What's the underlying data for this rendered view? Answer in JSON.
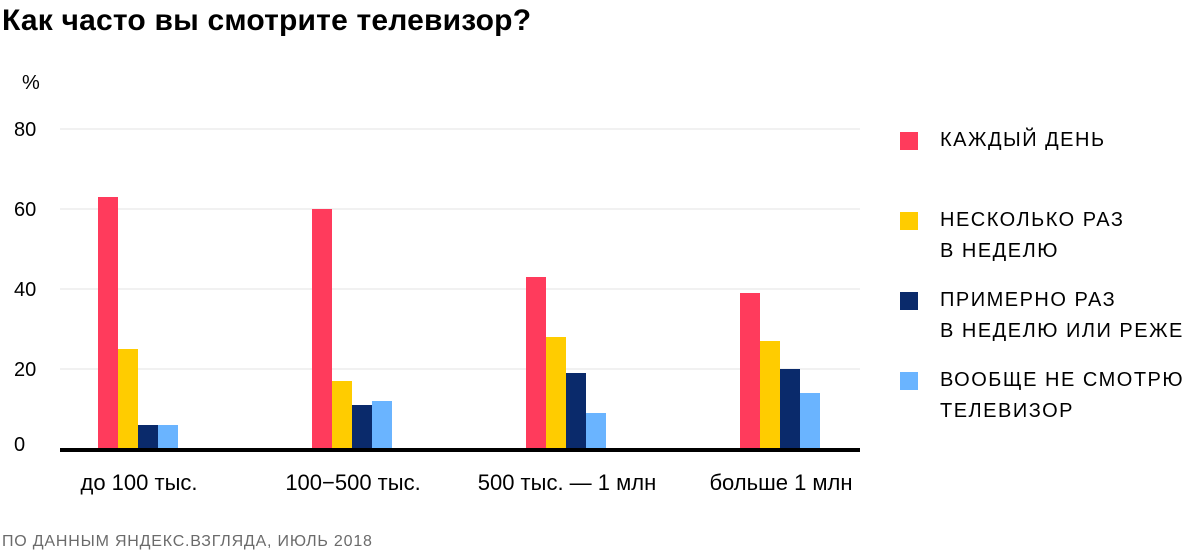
{
  "title": "Как часто вы смотрите телевизор?",
  "source": "ПО ДАННЫМ ЯНДЕКС.ВЗГЛЯДА, ИЮЛЬ 2018",
  "chart_data": {
    "type": "bar",
    "title": "Как часто вы смотрите телевизор?",
    "ylabel": "%",
    "xlabel": "",
    "ylim": [
      0,
      80
    ],
    "yticks": [
      0,
      20,
      40,
      60,
      80
    ],
    "grid": true,
    "legend_position": "right",
    "categories": [
      "до 100 тыс.",
      "100−500 тыс.",
      "500 тыс. — 1 млн",
      "больше 1 млн"
    ],
    "series": [
      {
        "name": "КАЖДЫЙ ДЕНЬ",
        "color": "#ff3b5c",
        "values": [
          63,
          60,
          43,
          39
        ]
      },
      {
        "name": "НЕСКОЛЬКО РАЗ\nВ НЕДЕЛЮ",
        "color": "#ffcc00",
        "values": [
          25,
          17,
          28,
          27
        ]
      },
      {
        "name": "ПРИМЕРНО РАЗ\nВ НЕДЕЛЮ ИЛИ РЕЖЕ",
        "color": "#0a2a6b",
        "values": [
          6,
          11,
          19,
          20
        ]
      },
      {
        "name": "ВООБЩЕ НЕ СМОТРЮ\nТЕЛЕВИЗОР",
        "color": "#6ab4ff",
        "values": [
          6,
          12,
          9,
          14
        ]
      }
    ]
  }
}
